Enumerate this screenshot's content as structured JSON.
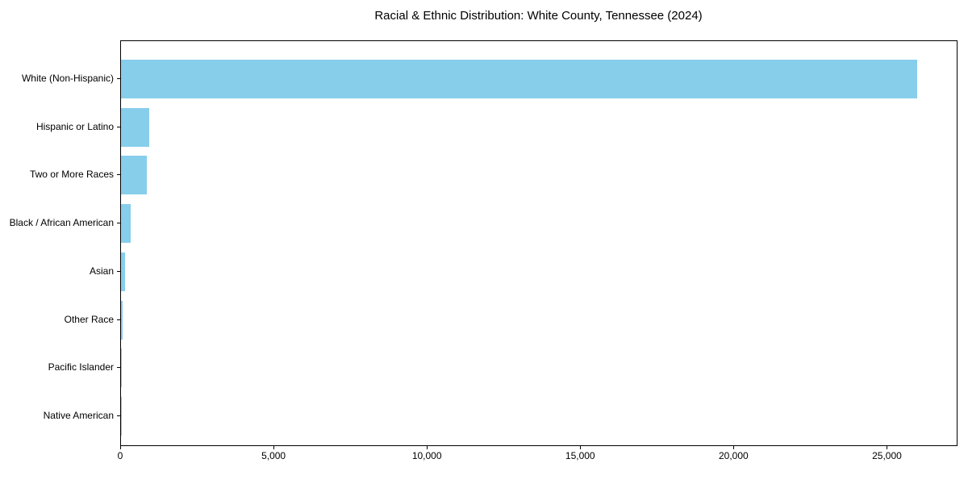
{
  "chart_data": {
    "type": "bar",
    "orientation": "horizontal",
    "title": "Racial & Ethnic Distribution: White County, Tennessee (2024)",
    "categories": [
      "White (Non-Hispanic)",
      "Hispanic or Latino",
      "Two or More Races",
      "Black / African American",
      "Asian",
      "Other Race",
      "Pacific Islander",
      "Native American"
    ],
    "values": [
      25950,
      920,
      840,
      315,
      130,
      55,
      25,
      10
    ],
    "xlabel": "",
    "ylabel": "",
    "xlim": [
      0,
      27250
    ],
    "x_ticks": [
      0,
      5000,
      10000,
      15000,
      20000,
      25000
    ],
    "x_tick_labels": [
      "0",
      "5,000",
      "10,000",
      "15,000",
      "20,000",
      "25,000"
    ],
    "grid": false,
    "legend": null,
    "bar_color": "#87CEEB",
    "background_color": "#ffffff",
    "axis_color": "#000000"
  }
}
